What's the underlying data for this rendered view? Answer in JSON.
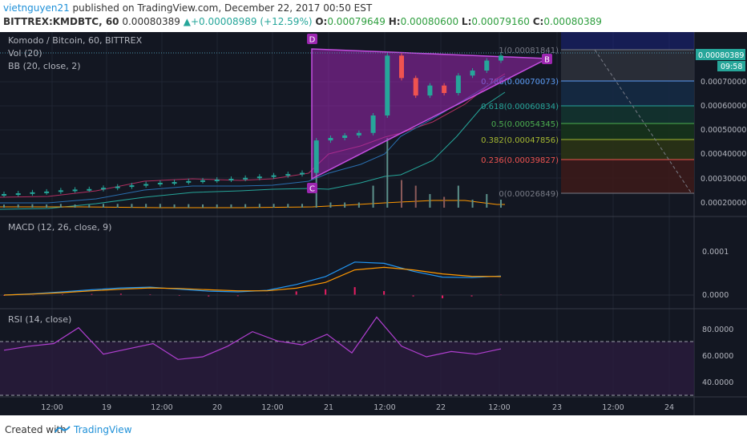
{
  "header": {
    "author": "vietnguyen21",
    "published_text": " published on TradingView.com, December 22, 2017 00:50 EST",
    "symbol": "BITTREX:KMDBTC, 60",
    "last": "0.00080389",
    "change": "+0.00008989 (+12.59%)",
    "o_label": "O:",
    "o": "0.00079649",
    "h_label": "H:",
    "h": "0.00080600",
    "l_label": "L:",
    "l": "0.00079160",
    "c_label": "C:",
    "c": "0.00080389"
  },
  "legend": {
    "main": "Komodo / Bitcoin, 60, BITTREX",
    "vol": "Vol (20)",
    "bb": "BB (20, close, 2)",
    "macd": "MACD (12, 26, close, 9)",
    "rsi": "RSI (14, close)"
  },
  "price_badge": "0.00080389",
  "time_badge": "09:58",
  "pattern_labels": {
    "d": "D",
    "c": "C",
    "b": "B"
  },
  "fib_levels": [
    {
      "ratio": "1",
      "text": "1(0.00081841)",
      "color": "#787b86"
    },
    {
      "ratio": "0.786",
      "text": "0.786(0.00070073)",
      "color": "#5b9cf6"
    },
    {
      "ratio": "0.618",
      "text": "0.618(0.00060834)",
      "color": "#26a69a"
    },
    {
      "ratio": "0.5",
      "text": "0.5(0.00054345)",
      "color": "#4caf50"
    },
    {
      "ratio": "0.382",
      "text": "0.382(0.00047856)",
      "color": "#a5b831"
    },
    {
      "ratio": "0.236",
      "text": "0.236(0.00039827)",
      "color": "#ef5350"
    },
    {
      "ratio": "0",
      "text": "0(0.00026849)",
      "color": "#787b86"
    }
  ],
  "footer": {
    "created": "Created with",
    "brand": "TradingView"
  },
  "colors": {
    "background": "#131722",
    "bull": "#26a69a",
    "bear": "#ef5350",
    "triangle": "#9c27b0",
    "macd": "#2196f3",
    "signal": "#ff9800",
    "rsi": "#b03fd0"
  },
  "chart_data": [
    {
      "type": "candlestick",
      "title": "Komodo / Bitcoin, 60, BITTREX",
      "x_ticks": [
        "12:00",
        "19",
        "12:00",
        "20",
        "12:00",
        "21",
        "12:00",
        "22",
        "12:00",
        "23",
        "12:00",
        "24"
      ],
      "y_ticks": [
        "0.00070000",
        "0.00060000",
        "0.00050000",
        "0.00040000",
        "0.00030000",
        "0.00020000"
      ],
      "ylim": [
        0.0002,
        0.00083
      ],
      "close": [
        0.000245,
        0.000248,
        0.000252,
        0.000255,
        0.00026,
        0.000263,
        0.000265,
        0.00027,
        0.000275,
        0.00028,
        0.000285,
        0.00029,
        0.000293,
        0.000297,
        0.0003,
        0.000303,
        0.000306,
        0.00031,
        0.000315,
        0.00032,
        0.000325,
        0.00033,
        0.00046,
        0.00047,
        0.00048,
        0.00049,
        0.00056,
        0.0008,
        0.00071,
        0.00064,
        0.00068,
        0.00065,
        0.00072,
        0.00074,
        0.00078,
        0.0008
      ]
    },
    {
      "type": "line",
      "title": "MACD (12, 26, close, 9)",
      "y_ticks": [
        "0.0001",
        "0.0000"
      ],
      "series": [
        {
          "name": "MACD",
          "values": [
            0.0,
            5e-06,
            1.2e-05,
            2e-05,
            2.7e-05,
            3e-05,
            2.2e-05,
            1.5e-05,
            1.2e-05,
            1.8e-05,
            4e-05,
            7e-05,
            0.000125,
            0.00012,
            9e-05,
            6.8e-05,
            6.6e-05,
            7.2e-05
          ]
        },
        {
          "name": "Signal",
          "values": [
            0.0,
            4e-06,
            9e-06,
            1.6e-05,
            2.2e-05,
            2.7e-05,
            2.5e-05,
            2e-05,
            1.6e-05,
            1.6e-05,
            2.6e-05,
            4.8e-05,
            9.5e-05,
            0.000105,
            9.5e-05,
            8e-05,
            7.1e-05,
            7e-05
          ]
        }
      ]
    },
    {
      "type": "line",
      "title": "RSI (14, close)",
      "y_ticks": [
        "80.0000",
        "60.0000",
        "40.0000"
      ],
      "bands": [
        70,
        30
      ],
      "series": [
        {
          "name": "RSI",
          "values": [
            65,
            68,
            70,
            82,
            62,
            66,
            70,
            58,
            60,
            68,
            79,
            72,
            69,
            77,
            63,
            90,
            68,
            60,
            64,
            62,
            66
          ]
        }
      ]
    }
  ]
}
